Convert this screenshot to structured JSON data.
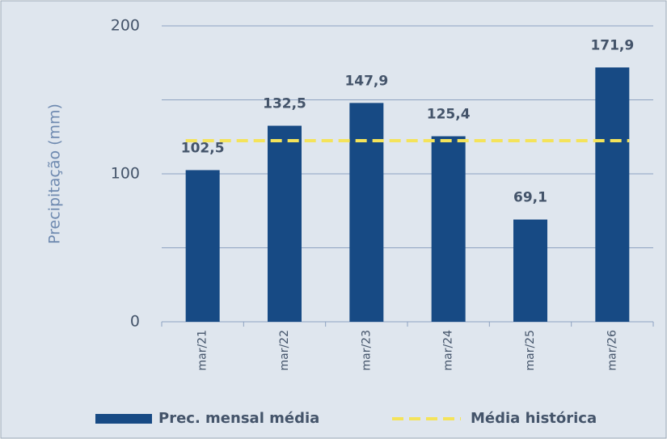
{
  "chart_data": {
    "type": "bar",
    "y_label": "Precipitação (mm)",
    "categories": [
      "mar/21",
      "mar/22",
      "mar/23",
      "mar/24",
      "mar/25",
      "mar/26"
    ],
    "series": [
      {
        "name": "Prec. mensal média",
        "type": "bar",
        "color": "#174a84",
        "values": [
          102.5,
          132.5,
          147.9,
          125.4,
          69.1,
          171.9
        ],
        "value_labels": [
          "102,5",
          "132,5",
          "147,9",
          "125,4",
          "69,1",
          "171,9"
        ]
      },
      {
        "name": "Média histórica",
        "type": "line",
        "color": "#f4e35a",
        "dashed": true,
        "values": [
          122.4,
          122.4,
          122.4,
          122.4,
          122.4,
          122.4
        ]
      }
    ],
    "ylim": [
      0,
      200
    ],
    "yticks": [
      0,
      100,
      200
    ],
    "minor_yticks": [
      50,
      150
    ],
    "grid": true,
    "legend": "bottom"
  }
}
